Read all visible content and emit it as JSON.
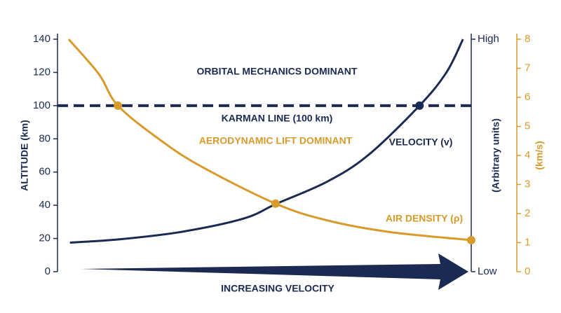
{
  "chart_data": {
    "type": "line",
    "ylabel": "ALTITUDE (km)",
    "xlabel": "INCREASING VELOCITY",
    "xlim": [
      0,
      100
    ],
    "ylim": [
      0,
      140
    ],
    "yticks": [
      0,
      20,
      40,
      60,
      80,
      100,
      120,
      140
    ],
    "y2label": "(km/s)",
    "y2lim": [
      0,
      8
    ],
    "y2ticks": [
      0,
      1,
      2,
      3,
      4,
      5,
      6,
      7,
      8
    ],
    "y2color": "#d89a2b",
    "velocity_axis": {
      "title": "(Arbitrary units)",
      "high": "High",
      "low": "Low"
    },
    "series": [
      {
        "name": "VELOCITY (v)",
        "color": "#1b2a52",
        "x": [
          3,
          15,
          30,
          45,
          53,
          65,
          75,
          87.5,
          94,
          98
        ],
        "values": [
          17.5,
          19.5,
          24,
          32,
          41,
          54,
          70,
          100,
          120,
          140
        ]
      },
      {
        "name": "AIR DENSITY (ρ)",
        "color": "#d89a2b",
        "x": [
          2.7,
          10,
          14.6,
          25,
          35,
          52.7,
          65,
          80,
          100
        ],
        "values": [
          140,
          119,
          100,
          79,
          63,
          41,
          31,
          24,
          19
        ]
      }
    ],
    "markers": [
      {
        "x": 14.6,
        "y": 100,
        "color": "#d89a2b"
      },
      {
        "x": 52.7,
        "y": 41,
        "color": "#d89a2b"
      },
      {
        "x": 87.5,
        "y": 100,
        "color": "#1b2a52"
      },
      {
        "x": 100,
        "y": 19,
        "color": "#d89a2b"
      }
    ],
    "karman_line": {
      "value": 100,
      "label": "KARMAN LINE (100 km)",
      "color": "#1b2a52"
    },
    "annotations": [
      "ORBITAL MECHANICS DOMINANT",
      "AERODYNAMIC LIFT DOMINANT"
    ]
  }
}
